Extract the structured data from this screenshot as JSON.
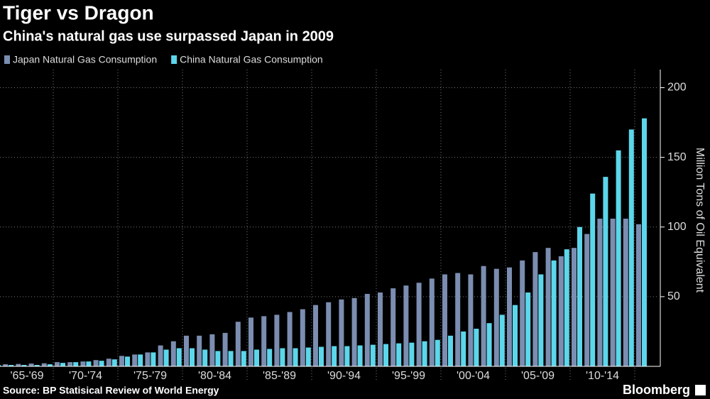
{
  "chart_data": {
    "type": "bar",
    "title": "Tiger vs Dragon",
    "subtitle": "China's natural gas use surpassed Japan in 2009",
    "y_axis_label": "Million Tons of Oil Equivalent",
    "source": "Source: BP Statisical Review of World Energy",
    "brand": "Bloomberg",
    "group_labels": [
      "'65-'69",
      "'70-'74",
      "'75-'79",
      "'80-'84",
      "'85-'89",
      "'90-'94",
      "'95-'99",
      "'00-'04",
      "'05-'09",
      "'10-'14"
    ],
    "categories": [
      null,
      null,
      null,
      null,
      null,
      null,
      null,
      null,
      null,
      null,
      null,
      null,
      null,
      null,
      null,
      null,
      null,
      null,
      null,
      null,
      null,
      null,
      null,
      null,
      null,
      null,
      null,
      null,
      null,
      null,
      null,
      null,
      null,
      null,
      null,
      null,
      null,
      null,
      null,
      null,
      null,
      null,
      null,
      null,
      null,
      null,
      null,
      null,
      null,
      null,
      null
    ],
    "series": [
      {
        "name": "Japan Natural Gas Consumption",
        "color": "#7b8db0",
        "values": [
          1.5,
          1.5,
          1.7,
          2,
          2.2,
          3,
          3,
          3.5,
          4.5,
          5.5,
          7.5,
          8.5,
          10,
          15,
          18,
          22,
          22,
          23,
          24,
          32,
          35,
          36,
          37,
          39,
          41,
          44,
          46,
          48,
          49,
          52,
          53,
          56,
          58,
          60,
          63,
          66,
          67,
          66,
          72,
          70,
          71,
          76,
          82,
          85,
          79,
          85,
          95,
          106,
          106,
          106,
          102
        ]
      },
      {
        "name": "China Natural Gas Consumption",
        "color": "#5cd6ea",
        "values": [
          0.9,
          1,
          1,
          1,
          1.5,
          2.5,
          3,
          3.5,
          4,
          5,
          7,
          8.5,
          10,
          12,
          13,
          13,
          12,
          11,
          11,
          11,
          12,
          12.5,
          13,
          13,
          13.5,
          14,
          14.5,
          14.5,
          15,
          15.5,
          16,
          16.5,
          17,
          18,
          19,
          22,
          25,
          27,
          31,
          37,
          44,
          53,
          66,
          76,
          84,
          100,
          124,
          136,
          155,
          170,
          178
        ]
      }
    ],
    "ylim": [
      0,
      213
    ],
    "yticks": [
      50,
      100,
      150,
      200
    ],
    "grid": true,
    "legend": "top-left"
  }
}
